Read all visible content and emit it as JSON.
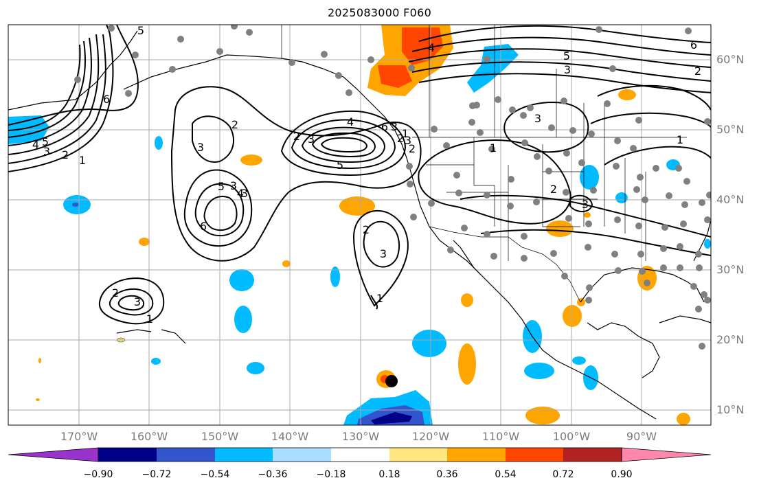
{
  "title": "2025083000 F060",
  "lon_labels": [
    "170°W",
    "160°W",
    "150°W",
    "140°W",
    "130°W",
    "120°W",
    "110°W",
    "100°W",
    "90°W"
  ],
  "lat_labels": [
    "60°N",
    "50°N",
    "40°N",
    "30°N",
    "20°N",
    "10°N"
  ],
  "contour_labels": [
    "5",
    "3",
    "2",
    "1",
    "4",
    "5",
    "6",
    "3",
    "2",
    "3",
    "4",
    "5",
    "6",
    "2",
    "3",
    "2",
    "3",
    "3",
    "4",
    "5",
    "6",
    "2",
    "3",
    "1",
    "1",
    "3",
    "2",
    "1",
    "2",
    "3",
    "2",
    "3",
    "4",
    "5",
    "6",
    "1",
    "2",
    "3",
    "3",
    "1"
  ],
  "colorbar": {
    "tick_labels": [
      "−0.90",
      "−0.72",
      "−0.54",
      "−0.36",
      "−0.18",
      "0.18",
      "0.36",
      "0.54",
      "0.72",
      "0.90"
    ],
    "colors": [
      "#9933cc",
      "#000088",
      "#3355cc",
      "#00bbff",
      "#aaddff",
      "#ffffff",
      "#ffe680",
      "#ffa500",
      "#ff4500",
      "#b22222",
      "#ff88aa"
    ]
  },
  "station_marker_color": "#808080",
  "storm_marker_color": "#000000"
}
